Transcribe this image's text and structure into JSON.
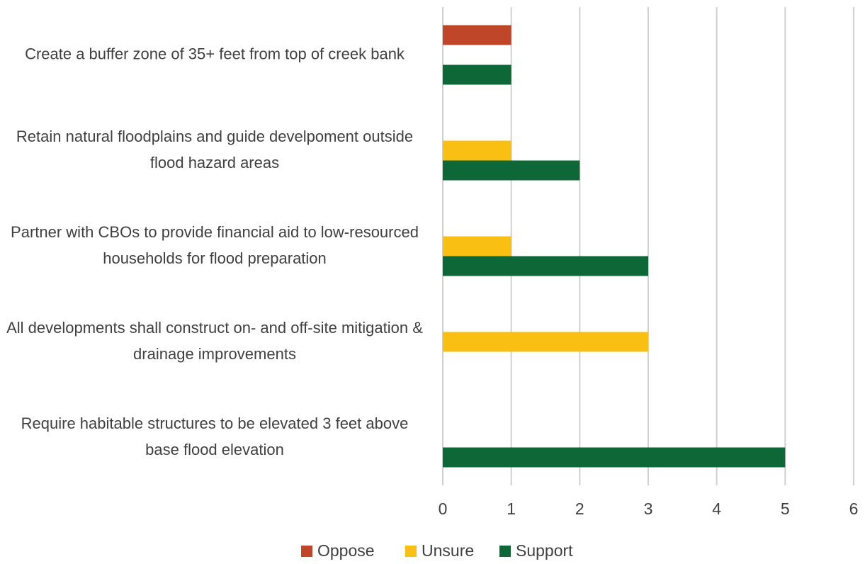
{
  "chart_data": {
    "type": "hbar",
    "categories": [
      "Create a buffer zone of 35+ feet from top of creek bank",
      "Retain natural floodplains and guide develpoment outside flood hazard areas",
      "Partner with CBOs to provide financial aid to low-resourced households for flood preparation",
      "All developments shall construct on- and off-site mitigation & drainage improvements",
      "Require habitable structures to be elevated 3 feet above base flood elevation"
    ],
    "series": [
      {
        "name": "Oppose",
        "color": "#c0462a",
        "values": [
          1,
          0,
          0,
          0,
          0
        ]
      },
      {
        "name": "Unsure",
        "color": "#f9c013",
        "values": [
          0,
          1,
          1,
          3,
          0
        ]
      },
      {
        "name": "Support",
        "color": "#0e6736",
        "values": [
          1,
          2,
          3,
          0,
          5
        ]
      }
    ],
    "xlim": [
      0,
      6
    ],
    "xticks": [
      0,
      1,
      2,
      3,
      4,
      5,
      6
    ],
    "grid": true,
    "legend": "bottom"
  }
}
